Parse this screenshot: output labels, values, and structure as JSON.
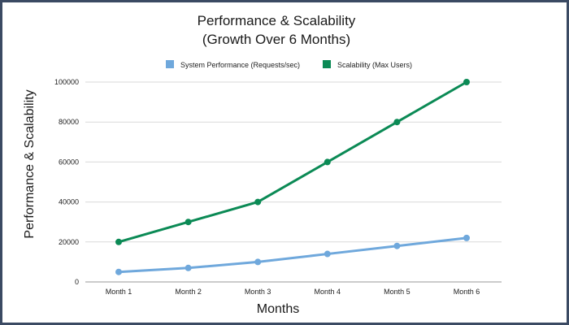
{
  "chart_data": {
    "type": "line",
    "title_line1": "Performance & Scalability",
    "title_line2": "(Growth Over 6 Months)",
    "xlabel": "Months",
    "ylabel": "Performance & Scalability",
    "categories": [
      "Month 1",
      "Month 2",
      "Month 3",
      "Month 4",
      "Month 5",
      "Month 6"
    ],
    "ylim": [
      0,
      100000
    ],
    "yticks": [
      0,
      20000,
      40000,
      60000,
      80000,
      100000
    ],
    "ytick_labels": [
      "0",
      "20000",
      "40000",
      "60000",
      "80000",
      "100000"
    ],
    "grid": true,
    "legend_position": "top-center",
    "series": [
      {
        "name": "System Performance (Requests/sec)",
        "color": "#6fa8dc",
        "values": [
          5000,
          7000,
          10000,
          14000,
          18000,
          22000
        ]
      },
      {
        "name": "Scalability (Max Users)",
        "color": "#0b8a55",
        "values": [
          20000,
          30000,
          40000,
          60000,
          80000,
          100000
        ]
      }
    ]
  }
}
